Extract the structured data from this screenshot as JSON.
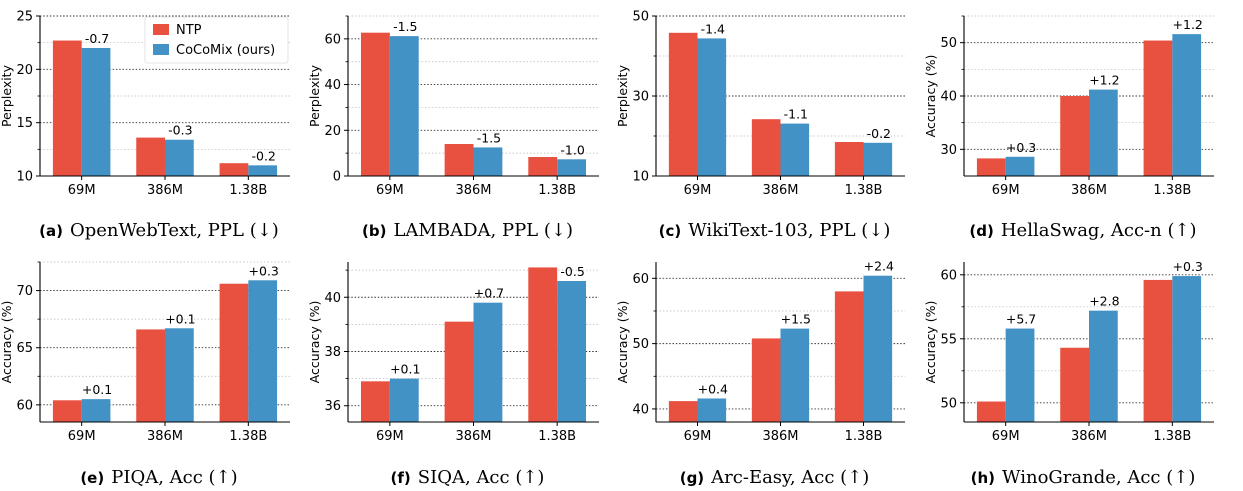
{
  "colors": {
    "ntp": "#e8503f",
    "cocomix": "#4292c6"
  },
  "legend": {
    "ntp": "NTP",
    "cocomix": "CoCoMix (ours)"
  },
  "chart_data": [
    {
      "type": "bar",
      "tag": "(a)",
      "caption": "OpenWebText, PPL (↓)",
      "ylabel": "Perplexity",
      "ylim": [
        10,
        25
      ],
      "yticks": [
        10,
        15,
        20,
        25
      ],
      "minor_ticks": [
        12.5,
        17.5,
        22.5
      ],
      "categories": [
        "69M",
        "386M",
        "1.38B"
      ],
      "series": [
        {
          "name": "NTP",
          "values": [
            22.7,
            13.6,
            11.2
          ]
        },
        {
          "name": "CoCoMix (ours)",
          "values": [
            22.0,
            13.4,
            11.0
          ]
        }
      ],
      "deltas": [
        "-0.7",
        "-0.3",
        "-0.2"
      ],
      "legend": true
    },
    {
      "type": "bar",
      "tag": "(b)",
      "caption": "LAMBADA, PPL (↓)",
      "ylabel": "Perplexity",
      "ylim": [
        0,
        70
      ],
      "yticks": [
        0,
        20,
        40,
        60
      ],
      "minor_ticks": [
        10,
        30,
        50,
        70
      ],
      "categories": [
        "69M",
        "386M",
        "1.38B"
      ],
      "series": [
        {
          "name": "NTP",
          "values": [
            62.7,
            14.0,
            8.3
          ]
        },
        {
          "name": "CoCoMix (ours)",
          "values": [
            61.2,
            12.5,
            7.3
          ]
        }
      ],
      "deltas": [
        "-1.5",
        "-1.5",
        "-1.0"
      ],
      "legend": false
    },
    {
      "type": "bar",
      "tag": "(c)",
      "caption": "WikiText-103, PPL (↓)",
      "ylabel": "Perplexity",
      "ylim": [
        10,
        50
      ],
      "yticks": [
        10,
        30,
        50
      ],
      "minor_ticks": [
        20,
        40
      ],
      "categories": [
        "69M",
        "386M",
        "1.38B"
      ],
      "series": [
        {
          "name": "NTP",
          "values": [
            45.8,
            24.2,
            18.5
          ]
        },
        {
          "name": "CoCoMix (ours)",
          "values": [
            44.4,
            23.1,
            18.3
          ]
        }
      ],
      "deltas": [
        "-1.4",
        "-1.1",
        "-0.2"
      ],
      "legend": false
    },
    {
      "type": "bar",
      "tag": "(d)",
      "caption": "HellaSwag, Acc-n (↑)",
      "ylabel": "Accuracy (%)",
      "ylim": [
        25,
        55
      ],
      "yticks": [
        30,
        40,
        50
      ],
      "minor_ticks": [
        35,
        45,
        55
      ],
      "categories": [
        "69M",
        "386M",
        "1.38B"
      ],
      "series": [
        {
          "name": "NTP",
          "values": [
            28.3,
            40.0,
            50.4
          ]
        },
        {
          "name": "CoCoMix (ours)",
          "values": [
            28.6,
            41.2,
            51.6
          ]
        }
      ],
      "deltas": [
        "+0.3",
        "+1.2",
        "+1.2"
      ],
      "legend": false
    },
    {
      "type": "bar",
      "tag": "(e)",
      "caption": "PIQA, Acc (↑)",
      "ylabel": "Accuracy (%)",
      "ylim": [
        58.5,
        72.5
      ],
      "yticks": [
        60,
        65,
        70
      ],
      "minor_ticks": [
        62.5,
        67.5,
        72.5
      ],
      "categories": [
        "69M",
        "386M",
        "1.38B"
      ],
      "series": [
        {
          "name": "NTP",
          "values": [
            60.4,
            66.6,
            70.6
          ]
        },
        {
          "name": "CoCoMix (ours)",
          "values": [
            60.5,
            66.7,
            70.9
          ]
        }
      ],
      "deltas": [
        "+0.1",
        "+0.1",
        "+0.3"
      ],
      "legend": false
    },
    {
      "type": "bar",
      "tag": "(f)",
      "caption": "SIQA, Acc (↑)",
      "ylabel": "Accuracy (%)",
      "ylim": [
        35.4,
        41.3
      ],
      "yticks": [
        36,
        38,
        40
      ],
      "minor_ticks": [
        37,
        39,
        41
      ],
      "categories": [
        "69M",
        "386M",
        "1.38B"
      ],
      "series": [
        {
          "name": "NTP",
          "values": [
            36.9,
            39.1,
            41.1
          ]
        },
        {
          "name": "CoCoMix (ours)",
          "values": [
            37.0,
            39.8,
            40.6
          ]
        }
      ],
      "deltas": [
        "+0.1",
        "+0.7",
        "-0.5"
      ],
      "legend": false
    },
    {
      "type": "bar",
      "tag": "(g)",
      "caption": "Arc-Easy, Acc (↑)",
      "ylabel": "Accuracy (%)",
      "ylim": [
        38,
        62.5
      ],
      "yticks": [
        40,
        50,
        60
      ],
      "minor_ticks": [
        45,
        55
      ],
      "categories": [
        "69M",
        "386M",
        "1.38B"
      ],
      "series": [
        {
          "name": "NTP",
          "values": [
            41.2,
            50.8,
            58.0
          ]
        },
        {
          "name": "CoCoMix (ours)",
          "values": [
            41.6,
            52.3,
            60.4
          ]
        }
      ],
      "deltas": [
        "+0.4",
        "+1.5",
        "+2.4"
      ],
      "legend": false
    },
    {
      "type": "bar",
      "tag": "(h)",
      "caption": "WinoGrande, Acc (↑)",
      "ylabel": "Accuracy (%)",
      "ylim": [
        48.5,
        61
      ],
      "yticks": [
        50,
        55,
        60
      ],
      "minor_ticks": [
        52.5,
        57.5
      ],
      "categories": [
        "69M",
        "386M",
        "1.38B"
      ],
      "series": [
        {
          "name": "NTP",
          "values": [
            50.1,
            54.3,
            59.6
          ]
        },
        {
          "name": "CoCoMix (ours)",
          "values": [
            55.8,
            57.2,
            59.9
          ]
        }
      ],
      "deltas": [
        "+5.7",
        "+2.8",
        "+0.3"
      ],
      "legend": false
    }
  ]
}
